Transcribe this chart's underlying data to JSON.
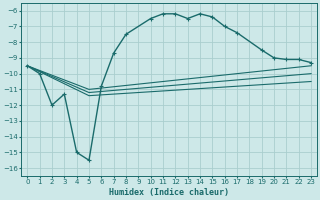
{
  "xlabel": "Humidex (Indice chaleur)",
  "bg_color": "#cde8e8",
  "grid_color": "#aacece",
  "line_color": "#1a6b6b",
  "xlim": [
    -0.5,
    23.5
  ],
  "ylim": [
    -16.5,
    -5.5
  ],
  "xticks": [
    0,
    1,
    2,
    3,
    4,
    5,
    6,
    7,
    8,
    9,
    10,
    11,
    12,
    13,
    14,
    15,
    16,
    17,
    18,
    19,
    20,
    21,
    22,
    23
  ],
  "yticks": [
    -16,
    -15,
    -14,
    -13,
    -12,
    -11,
    -10,
    -9,
    -8,
    -7,
    -6
  ],
  "curve1_x": [
    0,
    1,
    2,
    3,
    4,
    5,
    6,
    7,
    8,
    10,
    11,
    12,
    13,
    14,
    15,
    16,
    17,
    19,
    20,
    21,
    22,
    23
  ],
  "curve1_y": [
    -9.5,
    -10.0,
    -12.0,
    -11.3,
    -15.0,
    -15.5,
    -10.8,
    -8.7,
    -7.5,
    -6.5,
    -6.2,
    -6.2,
    -6.5,
    -6.2,
    -6.4,
    -7.0,
    -7.4,
    -8.5,
    -9.0,
    -9.1,
    -9.1,
    -9.3
  ],
  "curve2_x": [
    0,
    5,
    23
  ],
  "curve2_y": [
    -9.5,
    -11.0,
    -9.5
  ],
  "curve3_x": [
    0,
    5,
    23
  ],
  "curve3_y": [
    -9.5,
    -11.2,
    -10.0
  ],
  "curve4_x": [
    0,
    5,
    23
  ],
  "curve4_y": [
    -9.5,
    -11.4,
    -10.5
  ]
}
